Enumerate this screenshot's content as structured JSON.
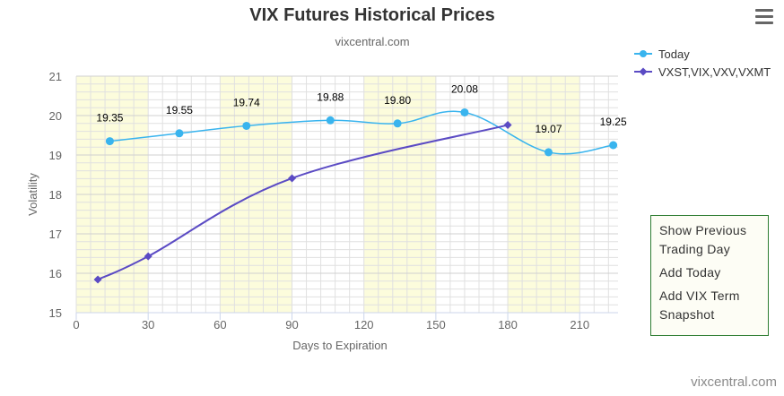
{
  "header": {
    "title": "VIX Futures Historical Prices",
    "subtitle": "vixcentral.com"
  },
  "legend": {
    "items": [
      "Today",
      "VXST,VIX,VXV,VXMT"
    ]
  },
  "actions": {
    "show_previous": "Show Previous Trading Day",
    "add_today": "Add Today",
    "add_vix_term": "Add VIX Term Snapshot"
  },
  "credit": "vixcentral.com",
  "colors": {
    "today": "#39b4ee",
    "indices": "#5b4bc4",
    "band": "#fcfcdc",
    "grid": "#e0e0e0"
  },
  "chart_data": {
    "type": "line",
    "xlabel": "Days to Expiration",
    "ylabel": "Volatility",
    "xlim": [
      0,
      226
    ],
    "ylim": [
      15,
      21
    ],
    "x_ticks": [
      "0",
      "30",
      "60",
      "90",
      "120",
      "150",
      "180",
      "210"
    ],
    "y_ticks": [
      "15",
      "16",
      "17",
      "18",
      "19",
      "20",
      "21"
    ],
    "bands": [
      [
        0,
        30
      ],
      [
        60,
        90
      ],
      [
        120,
        150
      ],
      [
        180,
        210
      ]
    ],
    "series": [
      {
        "name": "Today",
        "x": [
          14,
          43,
          71,
          106,
          134,
          162,
          197,
          224
        ],
        "values": [
          19.35,
          19.55,
          19.74,
          19.88,
          19.8,
          20.08,
          19.07,
          19.25
        ],
        "labels": [
          "19.35",
          "19.55",
          "19.74",
          "19.88",
          "19.80",
          "20.08",
          "19.07",
          "19.25"
        ]
      },
      {
        "name": "VXST,VIX,VXV,VXMT",
        "x": [
          9,
          30,
          90,
          180
        ],
        "values": [
          15.84,
          16.43,
          18.41,
          19.76
        ]
      }
    ]
  }
}
